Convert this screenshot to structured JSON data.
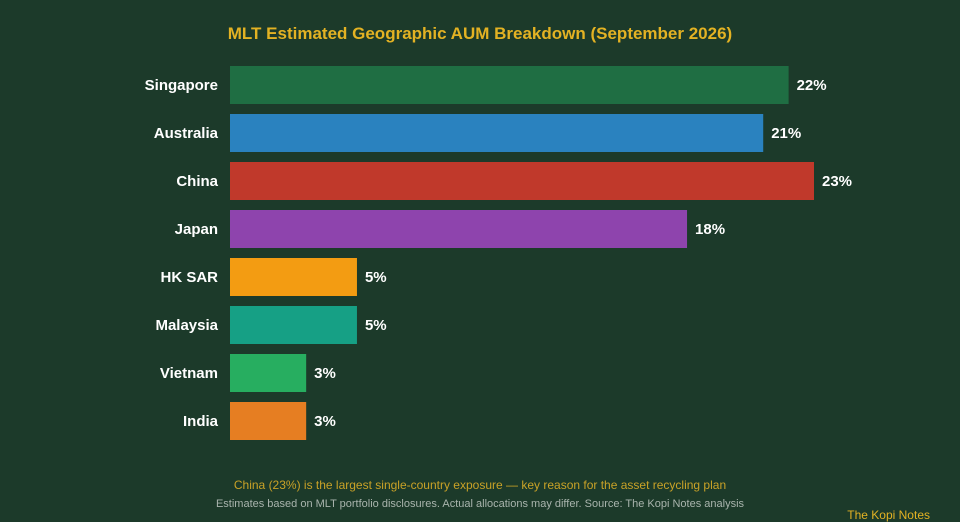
{
  "chart_data": {
    "type": "bar",
    "orientation": "horizontal",
    "title": "MLT Estimated Geographic AUM Breakdown (September 2026)",
    "categories": [
      "Singapore",
      "Australia",
      "China",
      "Japan",
      "HK SAR",
      "Malaysia",
      "Vietnam",
      "India"
    ],
    "values": [
      22,
      21,
      23,
      18,
      5,
      5,
      3,
      3
    ],
    "value_labels": [
      "22%",
      "21%",
      "23%",
      "18%",
      "5%",
      "5%",
      "3%",
      "3%"
    ],
    "colors": [
      "#1f6e43",
      "#2a82bf",
      "#c0392b",
      "#8e44ad",
      "#f39c12",
      "#16a085",
      "#27ae60",
      "#e67e22"
    ],
    "xlim": [
      0,
      23
    ],
    "grid": false,
    "legend": "none"
  },
  "notes": {
    "insight": "China (23%) is the largest single-country exposure — key reason for the asset recycling plan",
    "footnote": "Estimates based on MLT portfolio disclosures. Actual allocations may differ. Source: The Kopi Notes analysis",
    "brand": "The Kopi Notes"
  },
  "theme": {
    "background": "#1c3a2a",
    "title_color": "#e3b223",
    "label_color": "#ffffff"
  }
}
